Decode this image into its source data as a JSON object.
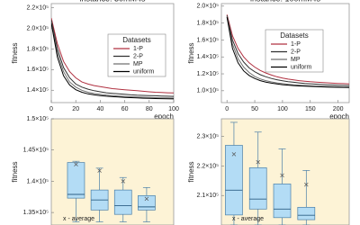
{
  "chart_data": [
    {
      "type": "line",
      "title": "instance: 30mM4s",
      "xlabel": "epoch",
      "ylabel": "fitness",
      "legend_title": "Datasets",
      "x": [
        0,
        5,
        10,
        15,
        20,
        25,
        30,
        35,
        40,
        45,
        50,
        55,
        60,
        65,
        70,
        75,
        80,
        85,
        90,
        95,
        100
      ],
      "series": [
        {
          "name": "1-P",
          "color": "#b03040",
          "values": [
            210000,
            185000,
            168000,
            158000,
            152000,
            148000,
            146000,
            144500,
            143500,
            142500,
            141500,
            141000,
            140500,
            140000,
            139500,
            139000,
            138500,
            138000,
            137800,
            137500,
            137300
          ]
        },
        {
          "name": "2-P",
          "color": "#303030",
          "values": [
            208000,
            180000,
            162000,
            152000,
            146000,
            143000,
            141000,
            139500,
            138500,
            137500,
            137000,
            136500,
            136000,
            135500,
            135200,
            135000,
            134800,
            134600,
            134400,
            134200,
            134000
          ]
        },
        {
          "name": "MP",
          "color": "#707070",
          "values": [
            206000,
            176000,
            158000,
            148000,
            143000,
            140000,
            138000,
            136800,
            136000,
            135300,
            134800,
            134400,
            134000,
            133700,
            133400,
            133200,
            133000,
            132800,
            132600,
            132500,
            132400
          ]
        },
        {
          "name": "uniform",
          "color": "#000000",
          "values": [
            205000,
            172000,
            154000,
            145000,
            140500,
            138000,
            136500,
            135500,
            134800,
            134200,
            133800,
            133400,
            133100,
            132800,
            132500,
            132300,
            132100,
            131900,
            131800,
            131700,
            131600
          ]
        }
      ],
      "xlim": [
        0,
        100
      ],
      "xticks": [
        0,
        20,
        40,
        60,
        80,
        100
      ],
      "ylim": [
        128000,
        224000
      ],
      "yticks": [
        {
          "value": 140000,
          "label": "1.4×10⁵"
        },
        {
          "value": 160000,
          "label": "1.6×10⁵"
        },
        {
          "value": 180000,
          "label": "1.8×10⁵"
        },
        {
          "value": 200000,
          "label": "2.0×10⁵"
        },
        {
          "value": 220000,
          "label": "2.2×10⁵"
        }
      ]
    },
    {
      "type": "line",
      "title": "instance: 100mM4s",
      "xlabel": "epoch",
      "ylabel": "fitness",
      "legend_title": "Datasets",
      "x": [
        0,
        10,
        20,
        30,
        40,
        50,
        60,
        70,
        80,
        90,
        100,
        110,
        120,
        130,
        140,
        150,
        160,
        170,
        180,
        190,
        200,
        210,
        220
      ],
      "series": [
        {
          "name": "1-P",
          "color": "#b03040",
          "values": [
            190000,
            165000,
            150000,
            140000,
            133000,
            128000,
            124000,
            121000,
            118500,
            116500,
            115000,
            113800,
            112800,
            112000,
            111300,
            110700,
            110200,
            109800,
            109400,
            109000,
            108700,
            108400,
            108100
          ]
        },
        {
          "name": "2-P",
          "color": "#303030",
          "values": [
            189000,
            160000,
            144000,
            134000,
            127000,
            122500,
            119000,
            116500,
            114500,
            113000,
            111800,
            110800,
            110000,
            109300,
            108700,
            108200,
            107800,
            107400,
            107100,
            106800,
            106500,
            106300,
            106100
          ]
        },
        {
          "name": "MP",
          "color": "#707070",
          "values": [
            188000,
            155000,
            138000,
            128000,
            121500,
            117000,
            114000,
            112000,
            110500,
            109300,
            108400,
            107700,
            107100,
            106600,
            106200,
            105800,
            105500,
            105200,
            105000,
            104800,
            104600,
            104400,
            104300
          ]
        },
        {
          "name": "uniform",
          "color": "#000000",
          "values": [
            187000,
            150000,
            133000,
            123500,
            118000,
            114500,
            112000,
            110300,
            109000,
            108000,
            107200,
            106600,
            106100,
            105700,
            105400,
            105100,
            104800,
            104600,
            104400,
            104200,
            104100,
            104000,
            103900
          ]
        }
      ],
      "xlim": [
        -10,
        220
      ],
      "xticks": [
        0,
        50,
        100,
        150,
        200
      ],
      "ylim": [
        86000,
        203000
      ],
      "yticks": [
        {
          "value": 100000,
          "label": "1.0×10⁵"
        },
        {
          "value": 120000,
          "label": "1.2×10⁵"
        },
        {
          "value": 140000,
          "label": "1.4×10⁵"
        },
        {
          "value": 160000,
          "label": "1.6×10⁵"
        },
        {
          "value": 180000,
          "label": "1.8×10⁵"
        },
        {
          "value": 200000,
          "label": "2.0×10⁵"
        }
      ]
    },
    {
      "type": "box",
      "ylabel": "fitness",
      "annotation": "x - average",
      "color": "#b3dcf5",
      "boxes": [
        {
          "whislo": 133500,
          "q1": 137300,
          "med": 137900,
          "q3": 143000,
          "whishi": 143200,
          "mean": 142700
        },
        {
          "whislo": 133500,
          "q1": 135400,
          "med": 137000,
          "q3": 138600,
          "whishi": 142100,
          "mean": 141700
        },
        {
          "whislo": 133500,
          "q1": 134700,
          "med": 136100,
          "q3": 138600,
          "whishi": 140600,
          "mean": 140000
        },
        {
          "whislo": 133500,
          "q1": 135400,
          "med": 135900,
          "q3": 137700,
          "whishi": 139000,
          "mean": 137200
        }
      ],
      "ylim": [
        133000,
        150000
      ],
      "yticks": [
        {
          "value": 135000,
          "label": "1.35×10⁵"
        },
        {
          "value": 140000,
          "label": "1.4×10⁵"
        },
        {
          "value": 145000,
          "label": "1.45×10⁵"
        },
        {
          "value": 150000,
          "label": "1.5×10⁵"
        }
      ]
    },
    {
      "type": "box",
      "ylabel": "fitness",
      "annotation": "x - average",
      "color": "#b3dcf5",
      "boxes": [
        {
          "whislo": 200000,
          "q1": 203400,
          "med": 211800,
          "q3": 227000,
          "whishi": 234800,
          "mean": 224000
        },
        {
          "whislo": 200000,
          "q1": 205400,
          "med": 208800,
          "q3": 219400,
          "whishi": 231500,
          "mean": 221300
        },
        {
          "whislo": 200000,
          "q1": 202500,
          "med": 205400,
          "q3": 213900,
          "whishi": 225800,
          "mean": 216800
        },
        {
          "whislo": 200000,
          "q1": 201800,
          "med": 203300,
          "q3": 206000,
          "whishi": 218500,
          "mean": 213700
        }
      ],
      "ylim": [
        200000,
        236000
      ],
      "yticks": [
        {
          "value": 210000,
          "label": "2.1×10⁵"
        },
        {
          "value": 220000,
          "label": "2.2×10⁵"
        },
        {
          "value": 230000,
          "label": "2.3×10⁵"
        }
      ]
    }
  ]
}
